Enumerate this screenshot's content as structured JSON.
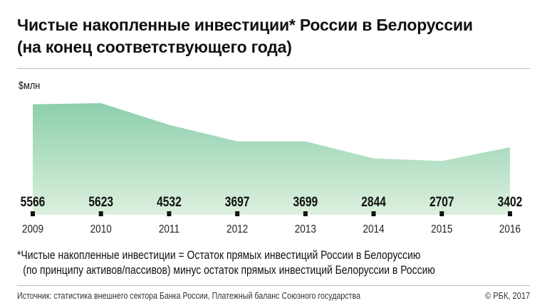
{
  "title_line1": "Чистые накопленные инвестиции* России в Белоруссии",
  "title_line2": "(на конец соответствующего года)",
  "footnote_line1": "*Чистые накопленные инвестиции = Остаток прямых инвестиций России в Белоруссию",
  "footnote_line2": "(по принципу активов/пассивов) минус остаток прямых инвестиций Белоруссии в Россию",
  "source": "Источник: статистика внешнего сектора Банка России, Платежный баланс Союзного государства",
  "copyright": "© РБК, 2017",
  "chart_data": {
    "type": "area",
    "title": "Чистые накопленные инвестиции* России в Белоруссии (на конец соответствующего года)",
    "ylabel": "$млн",
    "categories": [
      "2009",
      "2010",
      "2011",
      "2012",
      "2013",
      "2014",
      "2015",
      "2016"
    ],
    "values": [
      5566,
      5623,
      4532,
      3697,
      3699,
      2844,
      2707,
      3402
    ],
    "ylim": [
      0,
      5623
    ],
    "grid": false,
    "colors": {
      "fill_top": "#8ccfac",
      "fill_bottom": "#dcf0dd"
    }
  }
}
